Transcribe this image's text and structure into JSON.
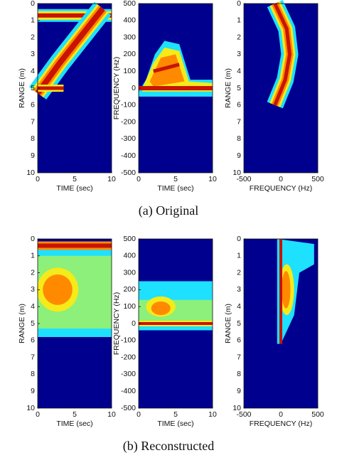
{
  "chart_data": [
    {
      "type": "heatmap",
      "xlabel": "TIME (sec)",
      "ylabel": "RANGE (m)",
      "xlim": [
        0,
        10
      ],
      "xticks": [
        0,
        5,
        10
      ],
      "ylim": [
        10,
        0
      ],
      "yticks": [
        0,
        1,
        2,
        3,
        4,
        5,
        6,
        7,
        8,
        9,
        10
      ]
    },
    {
      "type": "heatmap",
      "xlabel": "TIME (sec)",
      "ylabel": "FREQUENCY (Hz)",
      "xlim": [
        0,
        10
      ],
      "xticks": [
        0,
        5,
        10
      ],
      "ylim": [
        -500,
        500
      ],
      "yticks": [
        -500,
        -400,
        -300,
        -200,
        -100,
        0,
        100,
        200,
        300,
        400,
        500
      ]
    },
    {
      "type": "heatmap",
      "xlabel": "FREQUENCY (Hz)",
      "ylabel": "RANGE (m)",
      "xlim": [
        -500,
        500
      ],
      "xticks": [
        -500,
        0,
        500
      ],
      "ylim": [
        10,
        0
      ],
      "yticks": [
        0,
        1,
        2,
        3,
        4,
        5,
        6,
        7,
        8,
        9,
        10
      ]
    },
    {
      "type": "heatmap",
      "xlabel": "TIME (sec)",
      "ylabel": "RANGE (m)",
      "xlim": [
        0,
        10
      ],
      "xticks": [
        0,
        5,
        10
      ],
      "ylim": [
        10,
        0
      ],
      "yticks": [
        0,
        1,
        2,
        3,
        4,
        5,
        6,
        7,
        8,
        9,
        10
      ]
    },
    {
      "type": "heatmap",
      "xlabel": "TIME (sec)",
      "ylabel": "FREQUENCY (Hz)",
      "xlim": [
        0,
        10
      ],
      "xticks": [
        0,
        5,
        10
      ],
      "ylim": [
        -500,
        500
      ],
      "yticks": [
        -500,
        -400,
        -300,
        -200,
        -100,
        0,
        100,
        200,
        300,
        400,
        500
      ]
    },
    {
      "type": "heatmap",
      "xlabel": "FREQUENCY (Hz)",
      "ylabel": "RANGE (m)",
      "xlim": [
        -500,
        500
      ],
      "xticks": [
        -500,
        0,
        500
      ],
      "ylim": [
        10,
        0
      ],
      "yticks": [
        0,
        1,
        2,
        3,
        4,
        5,
        6,
        7,
        8,
        9,
        10
      ]
    }
  ],
  "captions": [
    "(a) Original",
    "(b) Reconstructed"
  ]
}
